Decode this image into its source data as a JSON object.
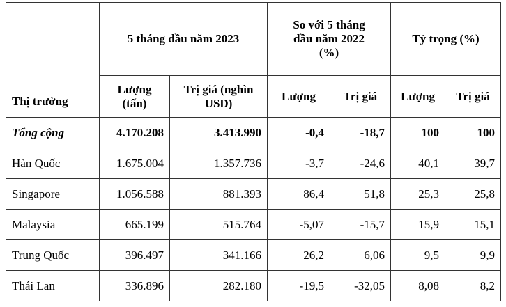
{
  "table": {
    "header_top": [
      "Thị trường",
      "5 tháng đầu năm 2023",
      "So với 5 tháng đầu năm 2022 (%)",
      "Tỷ trọng (%)"
    ],
    "header_sub": [
      "Lượng (tấn)",
      "Trị giá (nghìn USD)",
      "Lượng",
      "Trị giá",
      "Lượng",
      "Trị giá"
    ],
    "rows": [
      [
        "Tổng cộng",
        "4.170.208",
        "3.413.990",
        "-0,4",
        "-18,7",
        "100",
        "100"
      ],
      [
        "Hàn Quốc",
        "1.675.004",
        "1.357.736",
        "-3,7",
        "-24,6",
        "40,1",
        "39,7"
      ],
      [
        "Singapore",
        "1.056.588",
        "881.393",
        "86,4",
        "51,8",
        "25,3",
        "25,8"
      ],
      [
        "Malaysia",
        "665.199",
        "515.764",
        "-5,07",
        "-15,7",
        "15,9",
        "15,1"
      ],
      [
        "Trung Quốc",
        "396.497",
        "341.166",
        "26,2",
        "6,06",
        "9,5",
        "9,9"
      ],
      [
        "Thái Lan",
        "336.896",
        "282.180",
        "-19,5",
        "-32,05",
        "8,08",
        "8,2"
      ]
    ]
  }
}
